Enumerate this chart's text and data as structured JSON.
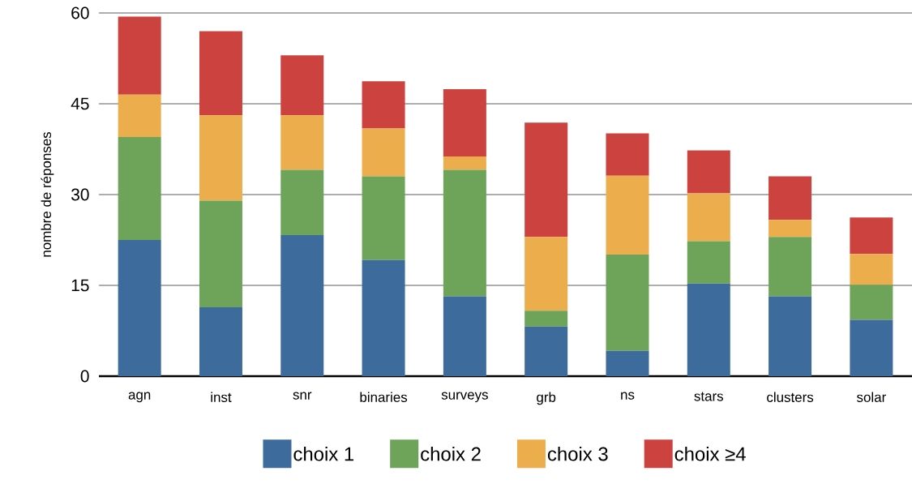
{
  "chart_data": {
    "type": "bar",
    "stacked": true,
    "ylabel": "nombre de réponses",
    "categories": [
      "agn",
      "inst",
      "snr",
      "binaries",
      "surveys",
      "grb",
      "ns",
      "stars",
      "clusters",
      "solar"
    ],
    "series": [
      {
        "name": "choix 1",
        "color": "#3d6b9c",
        "values": [
          22.5,
          11.4,
          23.3,
          19.2,
          13.2,
          8.2,
          4.2,
          15.3,
          13.2,
          9.3
        ]
      },
      {
        "name": "choix 2",
        "color": "#6ea45a",
        "values": [
          17,
          17.6,
          10.8,
          13.8,
          20.9,
          2.6,
          15.9,
          7,
          9.8,
          5.8
        ]
      },
      {
        "name": "choix 3",
        "color": "#ecae4c",
        "values": [
          7,
          14.1,
          9,
          7.9,
          2.2,
          12.2,
          13,
          7.9,
          2.8,
          5.1
        ]
      },
      {
        "name": "choix ≥4",
        "color": "#cb423e",
        "values": [
          12.9,
          13.9,
          9.9,
          7.8,
          11.1,
          18.9,
          7,
          7.1,
          7.2,
          6
        ]
      }
    ],
    "ylim": [
      0,
      60
    ],
    "yticks": [
      0,
      15,
      30,
      45,
      60
    ],
    "grid": "y",
    "legend": "bottom"
  }
}
